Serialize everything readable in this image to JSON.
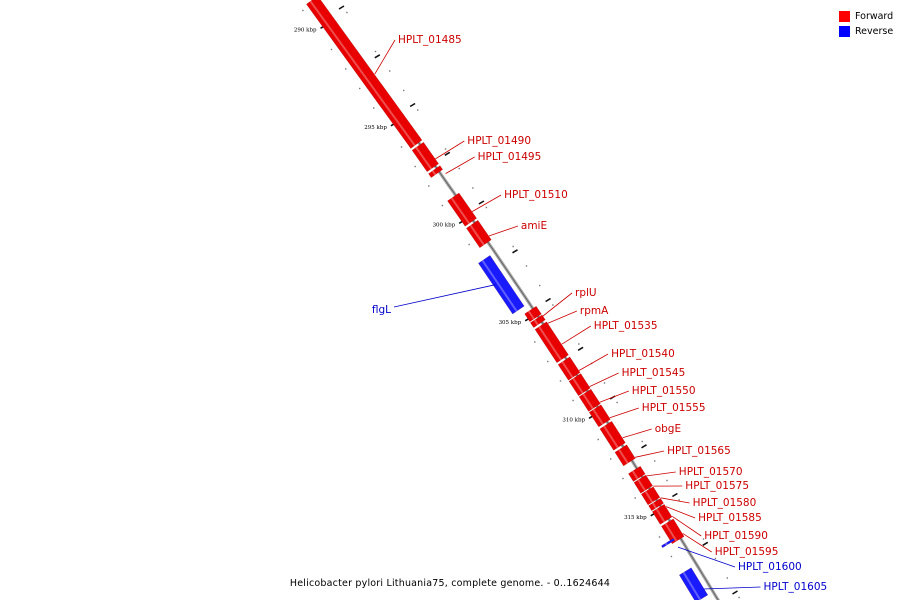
{
  "legend": {
    "items": [
      {
        "label": "Forward",
        "color": "#ff0000"
      },
      {
        "label": "Reverse",
        "color": "#0000ff"
      }
    ]
  },
  "caption": "Helicobacter pylori Lithuania75, complete genome. - 0..1624644",
  "colors": {
    "forward": "#e80000",
    "reverse": "#1a1aff",
    "label_forward": "#cc0000",
    "label_reverse": "#0000cc",
    "backbone": "#999999"
  },
  "chart_data": {
    "type": "genome_map",
    "range_kbp": [
      288.5,
      319.2
    ],
    "ticks": [
      {
        "kbp": 290,
        "label": "290 kbp"
      },
      {
        "kbp": 295,
        "label": "295 kbp"
      },
      {
        "kbp": 300,
        "label": "300 kbp"
      },
      {
        "kbp": 305,
        "label": "305 kbp"
      },
      {
        "kbp": 310,
        "label": "310 kbp"
      },
      {
        "kbp": 315,
        "label": "315 kbp"
      }
    ],
    "features": [
      {
        "name": "HPLT_01485",
        "strand": "forward",
        "start_kbp": 288.5,
        "end_kbp": 295.9
      },
      {
        "name": "HPLT_01490",
        "strand": "forward",
        "start_kbp": 296.0,
        "end_kbp": 297.1
      },
      {
        "name": "HPLT_01495",
        "strand": "forward",
        "start_kbp": 297.2,
        "end_kbp": 297.4
      },
      {
        "name": "HPLT_01510",
        "strand": "forward",
        "start_kbp": 298.6,
        "end_kbp": 299.9
      },
      {
        "name": "amiE",
        "strand": "forward",
        "start_kbp": 300.0,
        "end_kbp": 301.0
      },
      {
        "name": "flgL",
        "strand": "reverse",
        "start_kbp": 301.8,
        "end_kbp": 304.4
      },
      {
        "name": "rplU",
        "strand": "forward",
        "start_kbp": 304.4,
        "end_kbp": 304.8
      },
      {
        "name": "rpmA",
        "strand": "forward",
        "start_kbp": 304.85,
        "end_kbp": 305.1
      },
      {
        "name": "HPLT_01535",
        "strand": "forward",
        "start_kbp": 305.2,
        "end_kbp": 306.9
      },
      {
        "name": "HPLT_01540",
        "strand": "forward",
        "start_kbp": 307.0,
        "end_kbp": 307.8
      },
      {
        "name": "HPLT_01545",
        "strand": "forward",
        "start_kbp": 307.85,
        "end_kbp": 308.6
      },
      {
        "name": "HPLT_01550",
        "strand": "forward",
        "start_kbp": 308.65,
        "end_kbp": 309.4
      },
      {
        "name": "HPLT_01555",
        "strand": "forward",
        "start_kbp": 309.45,
        "end_kbp": 310.2
      },
      {
        "name": "obgE",
        "strand": "forward",
        "start_kbp": 310.3,
        "end_kbp": 311.4
      },
      {
        "name": "HPLT_01565",
        "strand": "forward",
        "start_kbp": 311.5,
        "end_kbp": 312.2
      },
      {
        "name": "HPLT_01570",
        "strand": "forward",
        "start_kbp": 312.6,
        "end_kbp": 313.0
      },
      {
        "name": "HPLT_01575",
        "strand": "forward",
        "start_kbp": 313.05,
        "end_kbp": 313.6
      },
      {
        "name": "HPLT_01580",
        "strand": "forward",
        "start_kbp": 313.65,
        "end_kbp": 314.2
      },
      {
        "name": "HPLT_01585",
        "strand": "forward",
        "start_kbp": 314.25,
        "end_kbp": 314.5
      },
      {
        "name": "HPLT_01590",
        "strand": "forward",
        "start_kbp": 314.55,
        "end_kbp": 315.2
      },
      {
        "name": "HPLT_01595",
        "strand": "forward",
        "start_kbp": 315.3,
        "end_kbp": 316.2
      },
      {
        "name": "HPLT_01600",
        "strand": "reverse",
        "start_kbp": 316.3,
        "end_kbp": 316.4
      },
      {
        "name": "HPLT_01605",
        "strand": "reverse",
        "start_kbp": 317.8,
        "end_kbp": 319.2
      }
    ]
  }
}
